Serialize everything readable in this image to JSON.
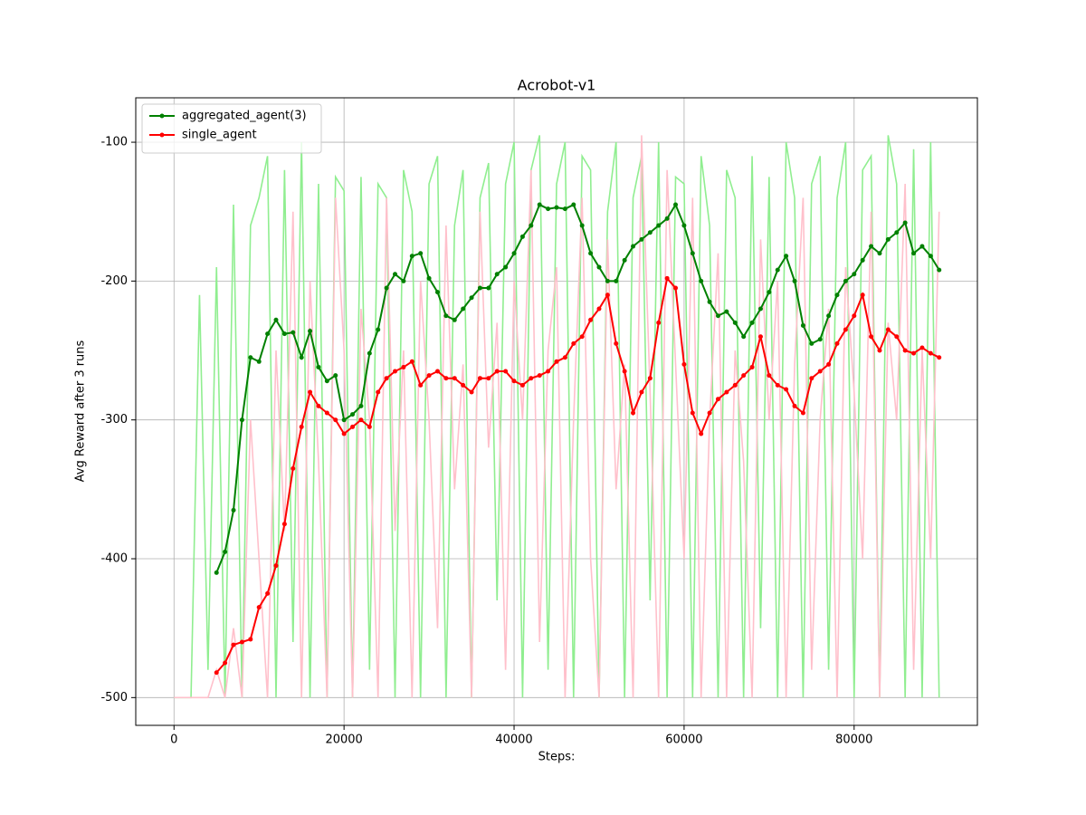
{
  "chart_data": {
    "type": "line",
    "title": "Acrobot-v1",
    "x_label": "Steps:",
    "y_label": "Avg Reward after 3 runs",
    "xlim": [
      -4500,
      94500
    ],
    "xticks": [
      0,
      20000,
      40000,
      60000,
      80000
    ],
    "ylim": [
      -520,
      -68
    ],
    "yticks": [
      -500,
      -400,
      -300,
      -200,
      -100
    ],
    "grid": true,
    "legend": "upper left",
    "series": [
      {
        "color": "#90ee90",
        "markers": false,
        "x": [
          0,
          1000,
          2000,
          3000,
          4000,
          5000,
          6000,
          7000,
          8000,
          9000,
          10000,
          11000,
          12000,
          13000,
          14000,
          15000,
          16000,
          17000,
          18000,
          19000,
          20000,
          21000,
          22000,
          23000,
          24000,
          25000,
          26000,
          27000,
          28000,
          29000,
          30000,
          31000,
          32000,
          33000,
          34000,
          35000,
          36000,
          37000,
          38000,
          39000,
          40000,
          41000,
          42000,
          43000,
          44000,
          45000,
          46000,
          47000,
          48000,
          49000,
          50000,
          51000,
          52000,
          53000,
          54000,
          55000,
          56000,
          57000,
          58000,
          59000,
          60000,
          61000,
          62000,
          63000,
          64000,
          65000,
          66000,
          67000,
          68000,
          69000,
          70000,
          71000,
          72000,
          73000,
          74000,
          75000,
          76000,
          77000,
          78000,
          79000,
          80000,
          81000,
          82000,
          83000,
          84000,
          85000,
          86000,
          87000,
          88000,
          89000,
          90000
        ],
        "values": [
          -500,
          -500,
          -500,
          -210,
          -480,
          -190,
          -500,
          -145,
          -500,
          -160,
          -140,
          -110,
          -500,
          -120,
          -460,
          -100,
          -500,
          -130,
          -500,
          -125,
          -135,
          -500,
          -125,
          -480,
          -130,
          -140,
          -500,
          -120,
          -150,
          -500,
          -130,
          -110,
          -500,
          -160,
          -120,
          -500,
          -140,
          -115,
          -430,
          -130,
          -100,
          -500,
          -120,
          -95,
          -480,
          -130,
          -100,
          -500,
          -110,
          -120,
          -500,
          -150,
          -100,
          -500,
          -140,
          -110,
          -430,
          -100,
          -500,
          -125,
          -130,
          -500,
          -110,
          -160,
          -500,
          -120,
          -140,
          -500,
          -110,
          -450,
          -125,
          -500,
          -100,
          -140,
          -500,
          -130,
          -110,
          -480,
          -140,
          -100,
          -500,
          -120,
          -110,
          -500,
          -95,
          -130,
          -500,
          -105,
          -500,
          -100,
          -500
        ]
      },
      {
        "color": "#ffc0cb",
        "markers": false,
        "x": [
          0,
          1000,
          2000,
          3000,
          4000,
          5000,
          6000,
          7000,
          8000,
          9000,
          10000,
          11000,
          12000,
          13000,
          14000,
          15000,
          16000,
          17000,
          18000,
          19000,
          20000,
          21000,
          22000,
          23000,
          24000,
          25000,
          26000,
          27000,
          28000,
          29000,
          30000,
          31000,
          32000,
          33000,
          34000,
          35000,
          36000,
          37000,
          38000,
          39000,
          40000,
          41000,
          42000,
          43000,
          44000,
          45000,
          46000,
          47000,
          48000,
          49000,
          50000,
          51000,
          52000,
          53000,
          54000,
          55000,
          56000,
          57000,
          58000,
          59000,
          60000,
          61000,
          62000,
          63000,
          64000,
          65000,
          66000,
          67000,
          68000,
          69000,
          70000,
          71000,
          72000,
          73000,
          74000,
          75000,
          76000,
          77000,
          78000,
          79000,
          80000,
          81000,
          82000,
          83000,
          84000,
          85000,
          86000,
          87000,
          88000,
          89000,
          90000
        ],
        "values": [
          -500,
          -500,
          -500,
          -500,
          -500,
          -480,
          -500,
          -450,
          -500,
          -300,
          -400,
          -500,
          -250,
          -380,
          -150,
          -500,
          -200,
          -330,
          -500,
          -140,
          -250,
          -500,
          -220,
          -300,
          -500,
          -140,
          -380,
          -250,
          -500,
          -200,
          -300,
          -450,
          -160,
          -350,
          -260,
          -500,
          -150,
          -320,
          -230,
          -480,
          -200,
          -300,
          -120,
          -460,
          -250,
          -190,
          -500,
          -300,
          -140,
          -400,
          -500,
          -170,
          -350,
          -260,
          -500,
          -95,
          -280,
          -500,
          -120,
          -260,
          -400,
          -140,
          -500,
          -300,
          -180,
          -500,
          -250,
          -330,
          -500,
          -170,
          -300,
          -200,
          -500,
          -260,
          -140,
          -480,
          -300,
          -220,
          -500,
          -190,
          -280,
          -400,
          -150,
          -500,
          -230,
          -300,
          -130,
          -480,
          -250,
          -400,
          -150
        ]
      },
      {
        "name": "aggregated_agent(3)",
        "color": "#008000",
        "markers": true,
        "x": [
          5000,
          6000,
          7000,
          8000,
          9000,
          10000,
          11000,
          12000,
          13000,
          14000,
          15000,
          16000,
          17000,
          18000,
          19000,
          20000,
          21000,
          22000,
          23000,
          24000,
          25000,
          26000,
          27000,
          28000,
          29000,
          30000,
          31000,
          32000,
          33000,
          34000,
          35000,
          36000,
          37000,
          38000,
          39000,
          40000,
          41000,
          42000,
          43000,
          44000,
          45000,
          46000,
          47000,
          48000,
          49000,
          50000,
          51000,
          52000,
          53000,
          54000,
          55000,
          56000,
          57000,
          58000,
          59000,
          60000,
          61000,
          62000,
          63000,
          64000,
          65000,
          66000,
          67000,
          68000,
          69000,
          70000,
          71000,
          72000,
          73000,
          74000,
          75000,
          76000,
          77000,
          78000,
          79000,
          80000,
          81000,
          82000,
          83000,
          84000,
          85000,
          86000,
          87000,
          88000,
          89000,
          90000
        ],
        "values": [
          -410,
          -395,
          -365,
          -300,
          -255,
          -258,
          -238,
          -228,
          -238,
          -237,
          -255,
          -236,
          -262,
          -272,
          -268,
          -300,
          -296,
          -290,
          -252,
          -235,
          -205,
          -195,
          -200,
          -182,
          -180,
          -198,
          -208,
          -225,
          -228,
          -220,
          -212,
          -205,
          -205,
          -195,
          -190,
          -180,
          -168,
          -160,
          -145,
          -148,
          -147,
          -148,
          -145,
          -160,
          -180,
          -190,
          -200,
          -200,
          -185,
          -175,
          -170,
          -165,
          -160,
          -155,
          -145,
          -160,
          -180,
          -200,
          -215,
          -225,
          -222,
          -230,
          -240,
          -230,
          -220,
          -208,
          -192,
          -182,
          -200,
          -232,
          -245,
          -242,
          -225,
          -210,
          -200,
          -195,
          -185,
          -175,
          -180,
          -170,
          -165,
          -158,
          -180,
          -175,
          -182,
          -192
        ]
      },
      {
        "name": "single_agent",
        "color": "#ff0000",
        "markers": true,
        "x": [
          5000,
          6000,
          7000,
          8000,
          9000,
          10000,
          11000,
          12000,
          13000,
          14000,
          15000,
          16000,
          17000,
          18000,
          19000,
          20000,
          21000,
          22000,
          23000,
          24000,
          25000,
          26000,
          27000,
          28000,
          29000,
          30000,
          31000,
          32000,
          33000,
          34000,
          35000,
          36000,
          37000,
          38000,
          39000,
          40000,
          41000,
          42000,
          43000,
          44000,
          45000,
          46000,
          47000,
          48000,
          49000,
          50000,
          51000,
          52000,
          53000,
          54000,
          55000,
          56000,
          57000,
          58000,
          59000,
          60000,
          61000,
          62000,
          63000,
          64000,
          65000,
          66000,
          67000,
          68000,
          69000,
          70000,
          71000,
          72000,
          73000,
          74000,
          75000,
          76000,
          77000,
          78000,
          79000,
          80000,
          81000,
          82000,
          83000,
          84000,
          85000,
          86000,
          87000,
          88000,
          89000,
          90000
        ],
        "values": [
          -482,
          -475,
          -462,
          -460,
          -458,
          -435,
          -425,
          -405,
          -375,
          -335,
          -305,
          -280,
          -290,
          -295,
          -300,
          -310,
          -305,
          -300,
          -305,
          -280,
          -270,
          -265,
          -262,
          -258,
          -275,
          -268,
          -265,
          -270,
          -270,
          -275,
          -280,
          -270,
          -270,
          -265,
          -265,
          -272,
          -275,
          -270,
          -268,
          -265,
          -258,
          -255,
          -245,
          -240,
          -228,
          -220,
          -210,
          -245,
          -265,
          -295,
          -280,
          -270,
          -230,
          -198,
          -205,
          -260,
          -295,
          -310,
          -295,
          -285,
          -280,
          -275,
          -268,
          -262,
          -240,
          -268,
          -275,
          -278,
          -290,
          -295,
          -270,
          -265,
          -260,
          -245,
          -235,
          -225,
          -210,
          -240,
          -250,
          -235,
          -240,
          -250,
          -252,
          -248,
          -252,
          -255
        ]
      }
    ]
  }
}
